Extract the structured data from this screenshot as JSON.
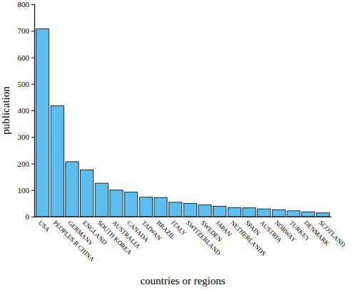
{
  "chart_data": {
    "type": "bar",
    "x_label": "countries or regions",
    "y_label": "publication",
    "categories": [
      "USA",
      "PEOPLES R CHINA",
      "GERMANY",
      "ENGLAND",
      "SOUTH KOREA",
      "AUSTRALIA",
      "CANADA",
      "TAIWAN",
      "BRAZIL",
      "ITALY",
      "SWITZERLAND",
      "SWEDEN",
      "JAPAN",
      "NETHERLANDS",
      "SPAIN",
      "AUSTRIA",
      "NORWAY",
      "TURKEY",
      "DENMARK",
      "SCOTLAND"
    ],
    "values": [
      708,
      418,
      207,
      176,
      126,
      100,
      92,
      73,
      72,
      54,
      50,
      44,
      39,
      34,
      33,
      29,
      26,
      22,
      18,
      14
    ],
    "color": "#5cbef0",
    "ylim": [
      0,
      800
    ],
    "yticks": [
      0,
      100,
      200,
      300,
      400,
      500,
      600,
      700,
      800
    ],
    "grid": false
  }
}
